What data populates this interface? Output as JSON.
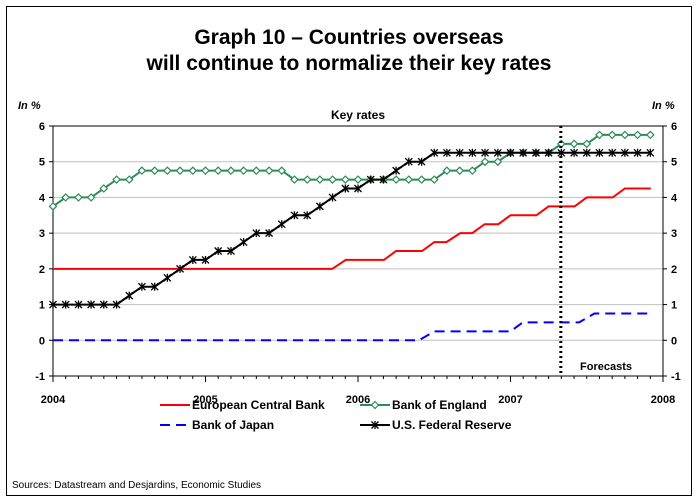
{
  "chart_data": {
    "type": "line",
    "title_line1": "Graph 10 – Countries overseas",
    "title_line2": "will continue to normalize their key rates",
    "subtitle": "Key rates",
    "ylabel_left": "In %",
    "ylabel_right": "In %",
    "ylim": [
      -1,
      6
    ],
    "yticks": [
      "-1",
      "0",
      "1",
      "2",
      "3",
      "4",
      "5",
      "6"
    ],
    "xlim": [
      2004,
      2008
    ],
    "xticks": [
      "2004",
      "2005",
      "2006",
      "2007",
      "2008"
    ],
    "forecast_start": 2007.33,
    "forecast_label": "Forecasts",
    "legend_position": "bottom",
    "source": "Sources: Datastream and Desjardins, Economic Studies",
    "colors": {
      "ecb": "#ff0000",
      "boe": "#2e8b57",
      "boj": "#0000ff",
      "fed": "#000000",
      "grid": "#c0c0c0",
      "forecast_line": "#000000"
    },
    "series": [
      {
        "key": "ecb",
        "name": "European Central Bank",
        "marker": "none",
        "dashed": false,
        "points": [
          [
            2004.0,
            2.0
          ],
          [
            2005.83,
            2.0
          ],
          [
            2005.92,
            2.25
          ],
          [
            2006.17,
            2.25
          ],
          [
            2006.25,
            2.5
          ],
          [
            2006.42,
            2.5
          ],
          [
            2006.5,
            2.75
          ],
          [
            2006.58,
            2.75
          ],
          [
            2006.67,
            3.0
          ],
          [
            2006.75,
            3.0
          ],
          [
            2006.83,
            3.25
          ],
          [
            2006.92,
            3.25
          ],
          [
            2007.0,
            3.5
          ],
          [
            2007.17,
            3.5
          ],
          [
            2007.25,
            3.75
          ],
          [
            2007.42,
            3.75
          ],
          [
            2007.5,
            4.0
          ],
          [
            2007.67,
            4.0
          ],
          [
            2007.75,
            4.25
          ],
          [
            2007.92,
            4.25
          ]
        ]
      },
      {
        "key": "boe",
        "name": "Bank of England",
        "marker": "diamond",
        "dashed": false,
        "points": [
          [
            2004.0,
            3.75
          ],
          [
            2004.083,
            4.0
          ],
          [
            2004.167,
            4.0
          ],
          [
            2004.25,
            4.0
          ],
          [
            2004.333,
            4.25
          ],
          [
            2004.417,
            4.5
          ],
          [
            2004.5,
            4.5
          ],
          [
            2004.583,
            4.75
          ],
          [
            2004.667,
            4.75
          ],
          [
            2004.75,
            4.75
          ],
          [
            2004.833,
            4.75
          ],
          [
            2004.917,
            4.75
          ],
          [
            2005.0,
            4.75
          ],
          [
            2005.083,
            4.75
          ],
          [
            2005.167,
            4.75
          ],
          [
            2005.25,
            4.75
          ],
          [
            2005.333,
            4.75
          ],
          [
            2005.417,
            4.75
          ],
          [
            2005.5,
            4.75
          ],
          [
            2005.583,
            4.5
          ],
          [
            2005.667,
            4.5
          ],
          [
            2005.75,
            4.5
          ],
          [
            2005.833,
            4.5
          ],
          [
            2005.917,
            4.5
          ],
          [
            2006.0,
            4.5
          ],
          [
            2006.083,
            4.5
          ],
          [
            2006.167,
            4.5
          ],
          [
            2006.25,
            4.5
          ],
          [
            2006.333,
            4.5
          ],
          [
            2006.417,
            4.5
          ],
          [
            2006.5,
            4.5
          ],
          [
            2006.583,
            4.75
          ],
          [
            2006.667,
            4.75
          ],
          [
            2006.75,
            4.75
          ],
          [
            2006.833,
            5.0
          ],
          [
            2006.917,
            5.0
          ],
          [
            2007.0,
            5.25
          ],
          [
            2007.083,
            5.25
          ],
          [
            2007.167,
            5.25
          ],
          [
            2007.25,
            5.25
          ],
          [
            2007.333,
            5.5
          ],
          [
            2007.417,
            5.5
          ],
          [
            2007.5,
            5.5
          ],
          [
            2007.583,
            5.75
          ],
          [
            2007.667,
            5.75
          ],
          [
            2007.75,
            5.75
          ],
          [
            2007.833,
            5.75
          ],
          [
            2007.917,
            5.75
          ]
        ]
      },
      {
        "key": "boj",
        "name": "Bank of Japan",
        "marker": "none",
        "dashed": true,
        "points": [
          [
            2004.0,
            0.0
          ],
          [
            2006.4,
            0.0
          ],
          [
            2006.5,
            0.25
          ],
          [
            2007.0,
            0.25
          ],
          [
            2007.08,
            0.5
          ],
          [
            2007.45,
            0.5
          ],
          [
            2007.55,
            0.75
          ],
          [
            2007.92,
            0.75
          ]
        ]
      },
      {
        "key": "fed",
        "name": "U.S. Federal Reserve",
        "marker": "star",
        "dashed": false,
        "points": [
          [
            2004.0,
            1.0
          ],
          [
            2004.083,
            1.0
          ],
          [
            2004.167,
            1.0
          ],
          [
            2004.25,
            1.0
          ],
          [
            2004.333,
            1.0
          ],
          [
            2004.417,
            1.0
          ],
          [
            2004.5,
            1.25
          ],
          [
            2004.583,
            1.5
          ],
          [
            2004.667,
            1.5
          ],
          [
            2004.75,
            1.75
          ],
          [
            2004.833,
            2.0
          ],
          [
            2004.917,
            2.25
          ],
          [
            2005.0,
            2.25
          ],
          [
            2005.083,
            2.5
          ],
          [
            2005.167,
            2.5
          ],
          [
            2005.25,
            2.75
          ],
          [
            2005.333,
            3.0
          ],
          [
            2005.417,
            3.0
          ],
          [
            2005.5,
            3.25
          ],
          [
            2005.583,
            3.5
          ],
          [
            2005.667,
            3.5
          ],
          [
            2005.75,
            3.75
          ],
          [
            2005.833,
            4.0
          ],
          [
            2005.917,
            4.25
          ],
          [
            2006.0,
            4.25
          ],
          [
            2006.083,
            4.5
          ],
          [
            2006.167,
            4.5
          ],
          [
            2006.25,
            4.75
          ],
          [
            2006.333,
            5.0
          ],
          [
            2006.417,
            5.0
          ],
          [
            2006.5,
            5.25
          ],
          [
            2006.583,
            5.25
          ],
          [
            2006.667,
            5.25
          ],
          [
            2006.75,
            5.25
          ],
          [
            2006.833,
            5.25
          ],
          [
            2006.917,
            5.25
          ],
          [
            2007.0,
            5.25
          ],
          [
            2007.083,
            5.25
          ],
          [
            2007.167,
            5.25
          ],
          [
            2007.25,
            5.25
          ],
          [
            2007.333,
            5.25
          ],
          [
            2007.417,
            5.25
          ],
          [
            2007.5,
            5.25
          ],
          [
            2007.583,
            5.25
          ],
          [
            2007.667,
            5.25
          ],
          [
            2007.75,
            5.25
          ],
          [
            2007.833,
            5.25
          ],
          [
            2007.917,
            5.25
          ]
        ]
      }
    ]
  }
}
